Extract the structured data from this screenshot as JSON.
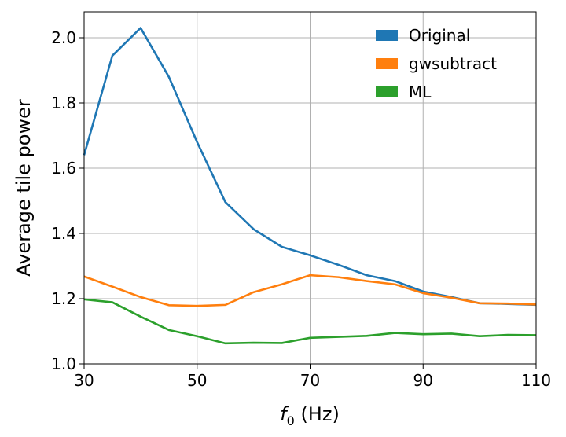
{
  "chart_data": {
    "type": "line",
    "title": "",
    "xlabel_italic": "f",
    "xlabel_sub": "0",
    "xlabel_rest": " (Hz)",
    "ylabel": "Average tile power",
    "xlim": [
      30,
      110
    ],
    "ylim": [
      1.0,
      2.08
    ],
    "xticks": [
      30,
      50,
      70,
      90,
      110
    ],
    "xtick_labels": [
      "30",
      "50",
      "70",
      "90",
      "110"
    ],
    "yticks": [
      1.0,
      1.2,
      1.4,
      1.6,
      1.8,
      2.0
    ],
    "ytick_labels": [
      "1.0",
      "1.2",
      "1.4",
      "1.6",
      "1.8",
      "2.0"
    ],
    "grid": true,
    "legend_position": "top-right",
    "x": [
      30,
      35,
      40,
      45,
      50,
      55,
      60,
      65,
      70,
      75,
      80,
      85,
      90,
      95,
      100,
      105,
      110
    ],
    "series": [
      {
        "name": "Original",
        "color": "#1f77b4",
        "values": [
          1.64,
          1.945,
          2.03,
          1.88,
          1.68,
          1.496,
          1.413,
          1.359,
          1.333,
          1.304,
          1.272,
          1.254,
          1.222,
          1.205,
          1.186,
          1.184,
          1.181
        ]
      },
      {
        "name": "gwsubtract",
        "color": "#ff7f0e",
        "values": [
          1.268,
          1.237,
          1.205,
          1.18,
          1.178,
          1.181,
          1.22,
          1.244,
          1.272,
          1.266,
          1.254,
          1.244,
          1.217,
          1.203,
          1.186,
          1.185,
          1.182
        ]
      },
      {
        "name": "ML",
        "color": "#2ca02c",
        "values": [
          1.198,
          1.189,
          1.145,
          1.104,
          1.085,
          1.063,
          1.065,
          1.064,
          1.08,
          1.083,
          1.086,
          1.095,
          1.091,
          1.093,
          1.085,
          1.089,
          1.088
        ]
      }
    ]
  }
}
